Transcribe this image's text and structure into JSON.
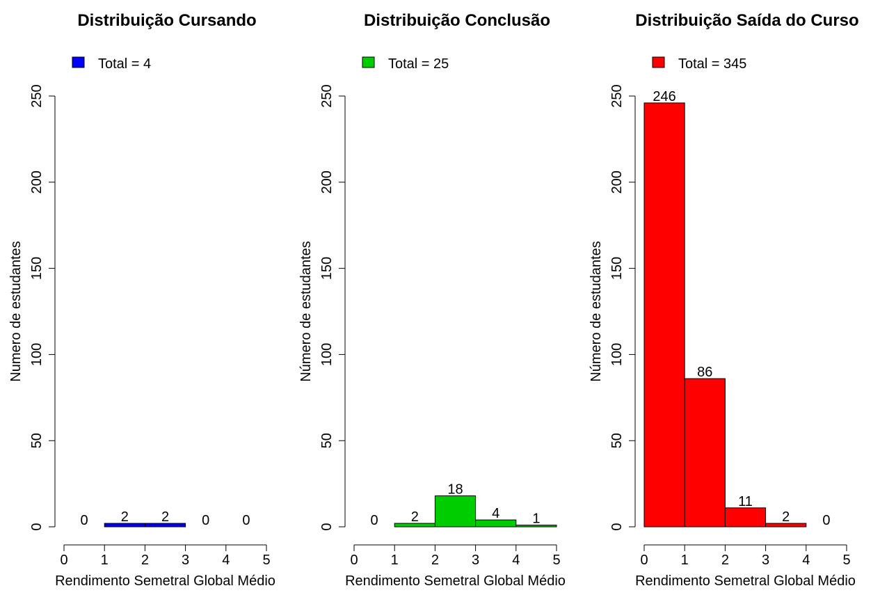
{
  "chart_data": [
    {
      "type": "bar",
      "title": "Distribuição Cursando",
      "xlabel": "Rendimento Semetral Global Médio",
      "ylabel": "Numero de estudantes",
      "legend": "Total = 4",
      "legend_position": "top-left",
      "color": "#0000ff",
      "bins": [
        [
          0,
          1
        ],
        [
          1,
          2
        ],
        [
          2,
          3
        ],
        [
          3,
          4
        ],
        [
          4,
          5
        ]
      ],
      "values": [
        0,
        2,
        2,
        0,
        0
      ],
      "xlim": [
        0,
        5
      ],
      "ylim": [
        0,
        250
      ],
      "xticks": [
        0,
        1,
        2,
        3,
        4,
        5
      ],
      "yticks": [
        0,
        50,
        100,
        150,
        200,
        250
      ],
      "grid": false
    },
    {
      "type": "bar",
      "title": "Distribuição Conclusão",
      "xlabel": "Rendimento Semetral Global Médio",
      "ylabel": "Número de estudantes",
      "legend": "Total = 25",
      "legend_position": "top-left",
      "color": "#00cd00",
      "bins": [
        [
          0,
          1
        ],
        [
          1,
          2
        ],
        [
          2,
          3
        ],
        [
          3,
          4
        ],
        [
          4,
          5
        ]
      ],
      "values": [
        0,
        2,
        18,
        4,
        1
      ],
      "xlim": [
        0,
        5
      ],
      "ylim": [
        0,
        250
      ],
      "xticks": [
        0,
        1,
        2,
        3,
        4,
        5
      ],
      "yticks": [
        0,
        50,
        100,
        150,
        200,
        250
      ],
      "grid": false
    },
    {
      "type": "bar",
      "title": "Distribuição Saída do Curso",
      "xlabel": "Rendimento Semetral Global Médio",
      "ylabel": "Número de estudantes",
      "legend": "Total = 345",
      "legend_position": "top-left",
      "color": "#ff0000",
      "bins": [
        [
          0,
          1
        ],
        [
          1,
          2
        ],
        [
          2,
          3
        ],
        [
          3,
          4
        ],
        [
          4,
          5
        ]
      ],
      "values": [
        246,
        86,
        11,
        2,
        0
      ],
      "xlim": [
        0,
        5
      ],
      "ylim": [
        0,
        250
      ],
      "xticks": [
        0,
        1,
        2,
        3,
        4,
        5
      ],
      "yticks": [
        0,
        50,
        100,
        150,
        200,
        250
      ],
      "grid": false
    }
  ]
}
